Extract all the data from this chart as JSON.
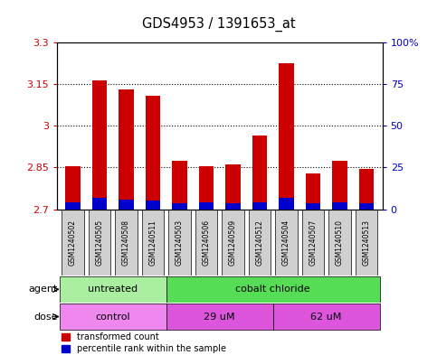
{
  "title": "GDS4953 / 1391653_at",
  "samples": [
    "GSM1240502",
    "GSM1240505",
    "GSM1240508",
    "GSM1240511",
    "GSM1240503",
    "GSM1240506",
    "GSM1240509",
    "GSM1240512",
    "GSM1240504",
    "GSM1240507",
    "GSM1240510",
    "GSM1240513"
  ],
  "red_values": [
    2.855,
    3.165,
    3.13,
    3.11,
    2.875,
    2.855,
    2.86,
    2.965,
    3.225,
    2.83,
    2.875,
    2.845
  ],
  "blue_values": [
    0.025,
    0.04,
    0.035,
    0.03,
    0.02,
    0.025,
    0.02,
    0.025,
    0.04,
    0.02,
    0.025,
    0.02
  ],
  "ymin": 2.7,
  "ymax": 3.3,
  "yticks": [
    2.7,
    2.85,
    3.0,
    3.15,
    3.3
  ],
  "ytick_labels": [
    "2.7",
    "2.85",
    "3",
    "3.15",
    "3.3"
  ],
  "right_ytick_labels": [
    "0",
    "25",
    "50",
    "75",
    "100%"
  ],
  "agent_groups": [
    {
      "label": "untreated",
      "start": 0,
      "end": 4,
      "color": "#aaeea0"
    },
    {
      "label": "cobalt chloride",
      "start": 4,
      "end": 12,
      "color": "#55dd55"
    }
  ],
  "dose_groups": [
    {
      "label": "control",
      "start": 0,
      "end": 4,
      "color": "#ee88ee"
    },
    {
      "label": "29 uM",
      "start": 4,
      "end": 8,
      "color": "#dd55dd"
    },
    {
      "label": "62 uM",
      "start": 8,
      "end": 12,
      "color": "#dd55dd"
    }
  ],
  "bar_width": 0.55,
  "red_color": "#cc0000",
  "blue_color": "#0000cc",
  "left_tick_color": "#cc0000",
  "right_tick_color": "#0000cc",
  "legend_red": "transformed count",
  "legend_blue": "percentile rank within the sample",
  "gray_box_color": "#d0d0d0",
  "dotted_lines": [
    2.85,
    3.0,
    3.15
  ]
}
